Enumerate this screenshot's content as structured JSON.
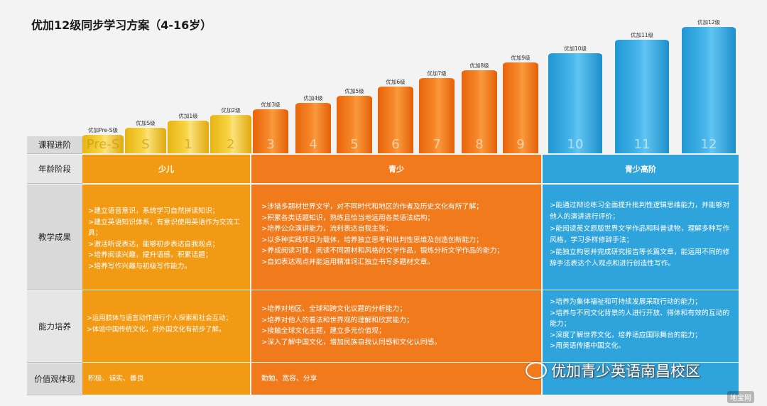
{
  "title": "优加12级同步学习方案（4-16岁）",
  "row_labels": {
    "progress": "课程进阶",
    "age": "年龄阶段",
    "results": "教学成果",
    "ability": "能力培养",
    "values": "价值观体现"
  },
  "levels": [
    {
      "name": "优加Pre-S级",
      "num": "Pre-S"
    },
    {
      "name": "优加S级",
      "num": "S"
    },
    {
      "name": "优加1级",
      "num": "1"
    },
    {
      "name": "优加2级",
      "num": "2"
    },
    {
      "name": "优加3级",
      "num": "3"
    },
    {
      "name": "优加4级",
      "num": "4"
    },
    {
      "name": "优加5级",
      "num": "5"
    },
    {
      "name": "优加6级",
      "num": "6"
    },
    {
      "name": "优加7级",
      "num": "7"
    },
    {
      "name": "优加8级",
      "num": "8"
    },
    {
      "name": "优加9级",
      "num": "9"
    },
    {
      "name": "优加10级",
      "num": "10"
    },
    {
      "name": "优加11级",
      "num": "11"
    },
    {
      "name": "优加12级",
      "num": "12"
    }
  ],
  "groups": {
    "child": {
      "name": "少儿",
      "results": [
        ">建立语音意识，系统学习自然拼读知识；",
        ">建立英语知识体系，有意识使用英语作为交流工具；",
        ">激活听说表达，能够初步表达自我观点；",
        ">培养阅读兴趣，提升语感，积累话题；",
        ">培养写作兴趣与初级写作能力。"
      ],
      "ability": [
        ">运用肢体与语言动作进行个人探索和社会互动；",
        ">体验中国传统文化，对外国文化有初步了解。"
      ],
      "values": "积极、诚实、善良"
    },
    "teen": {
      "name": "青少",
      "results": [
        ">涉猎多题材世界文学，对不同时代和地区的作者及历史文化有所了解；",
        ">积累各类话题知识，熟练且恰当地运用各类语法结构；",
        ">培养公众演讲能力，流利表达自我主张；",
        ">以多种实践项目为载体，培养独立思考和批判性思维及创造创新能力；",
        ">养成阅读习惯，阅读不同题材和风格的文学作品，锻炼分析文学作品的能力；",
        ">自如表达观点并能运用精准词汇独立书写多题材文章。"
      ],
      "ability": [
        ">培养对地区、全球和跨文化议题的分析能力；",
        ">培养对他人的看法和世界观的理解和欣赏能力；",
        ">接触全球文化主题，建立多元价值观；",
        ">深入了解中国文化，增加民族自我认同感和文化认同感。"
      ],
      "values": "勤勉、宽容、分享"
    },
    "senior": {
      "name": "青少高阶",
      "results": [
        ">能通过辩论练习全面提升批判性逻辑思维能力，并能够对他人的演讲进行评价；",
        ">能阅读英文原版世界文学作品和科普读物，理解多种写作风格，学习多样修辞手法；",
        ">能独立构思并完成研究报告等长篇文章，能运用不同的修辞手法表达个人观点和进行创造性写作。"
      ],
      "ability": [
        ">培养为集体福祉和可持续发展采取行动的能力；",
        ">培养与不同文化背景的人进行开放、得体和有效的互动的能力；",
        ">深度了解世界文化，培养适应国际舞台的能力；",
        ">用英语传播中国文化。"
      ]
    }
  },
  "watermark": "优加青少英语南昌校区",
  "corner_mark": "地宝网",
  "colors": {
    "yellow": "#f29a14",
    "orange": "#f17a1c",
    "blue": "#2fa3db"
  }
}
